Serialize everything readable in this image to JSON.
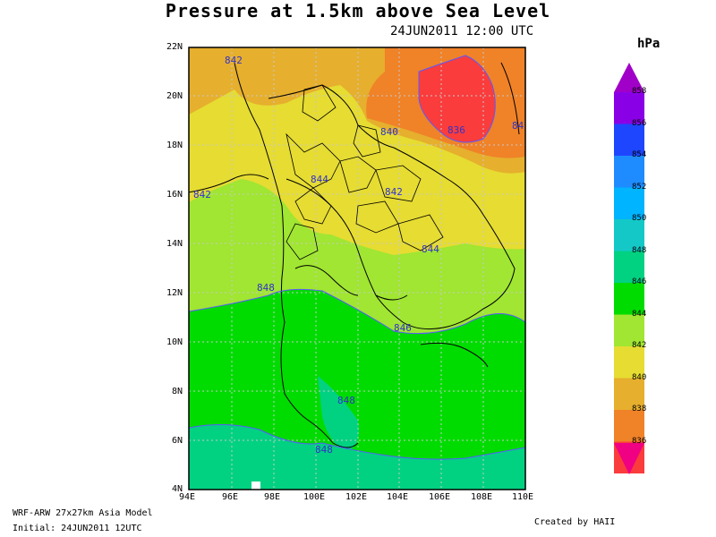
{
  "title": "Pressure at 1.5km above Sea Level",
  "subtitle": "24JUN2011 12:00 UTC",
  "colorbar": {
    "unit": "hPa",
    "levels": [
      {
        "value": "858",
        "color": "#8a00e6"
      },
      {
        "value": "856",
        "color": "#1e46ff"
      },
      {
        "value": "854",
        "color": "#1e8cff"
      },
      {
        "value": "852",
        "color": "#00b4ff"
      },
      {
        "value": "850",
        "color": "#14c8c8"
      },
      {
        "value": "848",
        "color": "#00d282"
      },
      {
        "value": "846",
        "color": "#00dc00"
      },
      {
        "value": "844",
        "color": "#a0e632"
      },
      {
        "value": "842",
        "color": "#e6dc32"
      },
      {
        "value": "840",
        "color": "#e6af2d"
      },
      {
        "value": "838",
        "color": "#f08228"
      },
      {
        "value": "836",
        "color": "#fa3c3c"
      }
    ],
    "top_color": "#a000c8",
    "bottom_color": "#f00082"
  },
  "axes": {
    "lat_labels": [
      "22N",
      "20N",
      "18N",
      "16N",
      "14N",
      "12N",
      "10N",
      "8N",
      "6N",
      "4N"
    ],
    "lon_labels": [
      "94E",
      "96E",
      "98E",
      "100E",
      "102E",
      "104E",
      "106E",
      "108E",
      "110E"
    ]
  },
  "contour_labels": [
    "842",
    "836",
    "840",
    "84",
    "844",
    "842",
    "842",
    "844",
    "848",
    "846",
    "848",
    "848"
  ],
  "footer": {
    "model": "WRF-ARW 27x27km Asia Model",
    "initial": "Initial: 24JUN2011 12UTC",
    "credit": "Created by HAII"
  }
}
